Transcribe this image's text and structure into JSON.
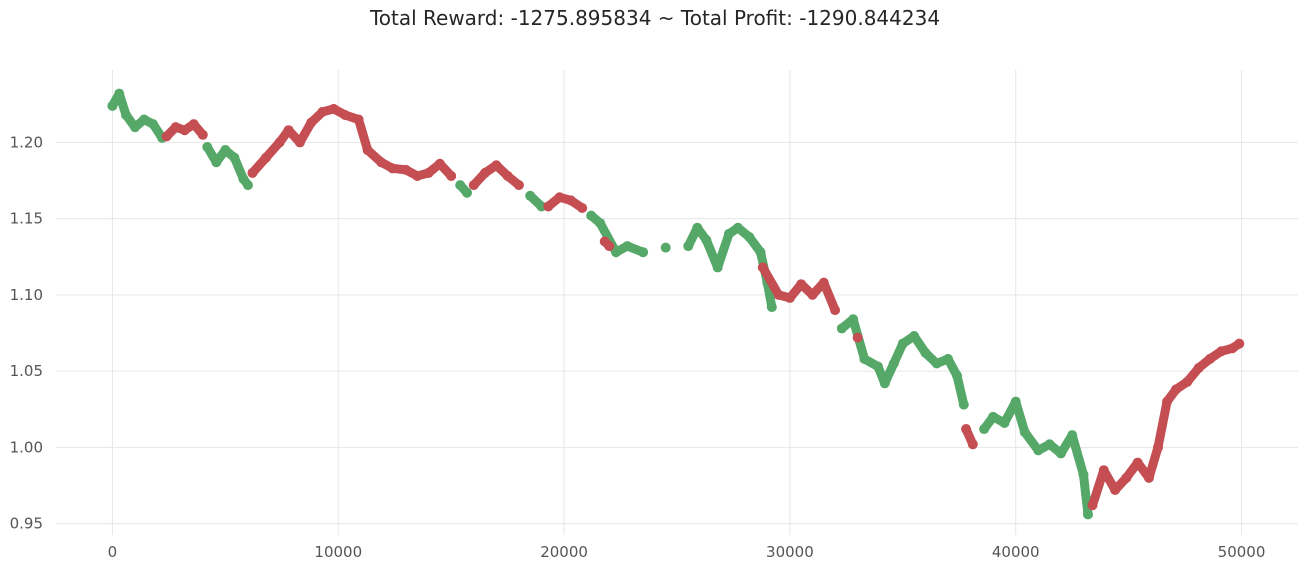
{
  "chart_data": {
    "type": "scatter",
    "title": "Total Reward: -1275.895834 ~ Total Profit: -1290.844234",
    "xlabel": "",
    "ylabel": "",
    "xlim": [
      -2500,
      52500
    ],
    "ylim": [
      0.9425,
      1.2475
    ],
    "x_ticks": [
      0,
      10000,
      20000,
      30000,
      40000,
      50000
    ],
    "x_tick_labels": [
      "0",
      "10000",
      "20000",
      "30000",
      "40000",
      "50000"
    ],
    "y_ticks": [
      0.95,
      1.0,
      1.05,
      1.1,
      1.15,
      1.2
    ],
    "y_tick_labels": [
      "0.95",
      "1.00",
      "1.05",
      "1.10",
      "1.15",
      "1.20"
    ],
    "grid": true,
    "colors": {
      "sell": "#c44e52",
      "buy": "#55a868"
    },
    "series": [
      {
        "color_key": "buy",
        "points": [
          [
            0,
            1.224
          ],
          [
            300,
            1.232
          ],
          [
            600,
            1.218
          ],
          [
            1000,
            1.21
          ],
          [
            1400,
            1.215
          ],
          [
            1800,
            1.212
          ],
          [
            2200,
            1.203
          ],
          [
            4200,
            1.197
          ],
          [
            4600,
            1.187
          ],
          [
            5000,
            1.195
          ],
          [
            5400,
            1.19
          ],
          [
            5800,
            1.176
          ],
          [
            6000,
            1.172
          ],
          [
            15400,
            1.172
          ],
          [
            15700,
            1.167
          ],
          [
            18500,
            1.165
          ],
          [
            19000,
            1.158
          ],
          [
            21200,
            1.152
          ],
          [
            21600,
            1.147
          ],
          [
            22300,
            1.128
          ],
          [
            22800,
            1.132
          ],
          [
            23500,
            1.128
          ],
          [
            24500,
            1.131
          ],
          [
            25500,
            1.132
          ],
          [
            25900,
            1.144
          ],
          [
            26300,
            1.136
          ],
          [
            26800,
            1.118
          ],
          [
            27300,
            1.14
          ],
          [
            27700,
            1.144
          ],
          [
            28200,
            1.138
          ],
          [
            28700,
            1.128
          ],
          [
            29000,
            1.108
          ],
          [
            29200,
            1.092
          ],
          [
            32300,
            1.078
          ],
          [
            32800,
            1.084
          ],
          [
            33300,
            1.058
          ],
          [
            33900,
            1.053
          ],
          [
            34200,
            1.042
          ],
          [
            34600,
            1.055
          ],
          [
            35000,
            1.068
          ],
          [
            35500,
            1.073
          ],
          [
            36000,
            1.062
          ],
          [
            36500,
            1.055
          ],
          [
            37000,
            1.058
          ],
          [
            37400,
            1.047
          ],
          [
            37700,
            1.028
          ],
          [
            38600,
            1.012
          ],
          [
            39000,
            1.02
          ],
          [
            39500,
            1.016
          ],
          [
            40000,
            1.03
          ],
          [
            40400,
            1.01
          ],
          [
            41000,
            0.998
          ],
          [
            41500,
            1.002
          ],
          [
            42000,
            0.996
          ],
          [
            42500,
            1.008
          ],
          [
            43000,
            0.982
          ],
          [
            43200,
            0.956
          ]
        ]
      },
      {
        "color_key": "sell",
        "points": [
          [
            2400,
            1.204
          ],
          [
            2800,
            1.21
          ],
          [
            3200,
            1.208
          ],
          [
            3600,
            1.212
          ],
          [
            4000,
            1.205
          ],
          [
            6200,
            1.18
          ],
          [
            6800,
            1.19
          ],
          [
            7400,
            1.2
          ],
          [
            7800,
            1.208
          ],
          [
            8300,
            1.2
          ],
          [
            8800,
            1.213
          ],
          [
            9300,
            1.22
          ],
          [
            9800,
            1.222
          ],
          [
            10300,
            1.218
          ],
          [
            10900,
            1.215
          ],
          [
            11300,
            1.195
          ],
          [
            11900,
            1.187
          ],
          [
            12400,
            1.183
          ],
          [
            13000,
            1.182
          ],
          [
            13500,
            1.178
          ],
          [
            14000,
            1.18
          ],
          [
            14500,
            1.186
          ],
          [
            15000,
            1.178
          ],
          [
            16000,
            1.172
          ],
          [
            16500,
            1.18
          ],
          [
            17000,
            1.185
          ],
          [
            17500,
            1.178
          ],
          [
            18000,
            1.172
          ],
          [
            19300,
            1.158
          ],
          [
            19800,
            1.164
          ],
          [
            20300,
            1.162
          ],
          [
            20800,
            1.157
          ],
          [
            21800,
            1.135
          ],
          [
            22000,
            1.132
          ],
          [
            28800,
            1.118
          ],
          [
            29500,
            1.1
          ],
          [
            30000,
            1.098
          ],
          [
            30500,
            1.107
          ],
          [
            31000,
            1.1
          ],
          [
            31500,
            1.108
          ],
          [
            32000,
            1.09
          ],
          [
            33000,
            1.072
          ],
          [
            37800,
            1.012
          ],
          [
            38100,
            1.002
          ],
          [
            43400,
            0.962
          ],
          [
            43900,
            0.985
          ],
          [
            44400,
            0.972
          ],
          [
            44900,
            0.98
          ],
          [
            45400,
            0.99
          ],
          [
            45900,
            0.98
          ],
          [
            46300,
            1.0
          ],
          [
            46700,
            1.03
          ],
          [
            47100,
            1.038
          ],
          [
            47600,
            1.043
          ],
          [
            48100,
            1.052
          ],
          [
            48600,
            1.058
          ],
          [
            49100,
            1.063
          ],
          [
            49600,
            1.065
          ],
          [
            49900,
            1.068
          ]
        ]
      }
    ]
  }
}
